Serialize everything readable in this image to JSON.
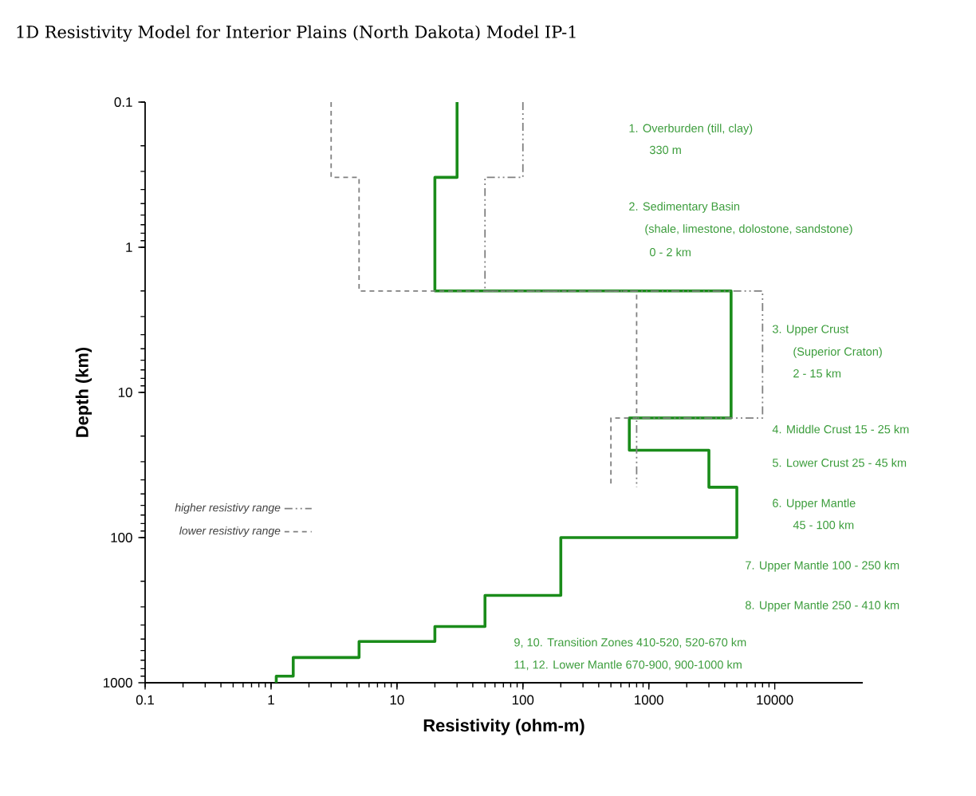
{
  "chart_data": {
    "type": "line",
    "title": "1D Resistivity Model for Interior Plains (North Dakota) Model IP-1",
    "xlabel": "Resistivity (ohm-m)",
    "ylabel": "Depth (km)",
    "log": "xy",
    "xlim": [
      0.1,
      50000
    ],
    "ylim": [
      1000,
      0.1
    ],
    "xticks": [
      0.1,
      1,
      10,
      100,
      1000,
      10000
    ],
    "yticks": [
      0.1,
      1,
      10,
      100,
      1000
    ],
    "grid": false,
    "legend": "left",
    "marker": "none",
    "series": [
      {
        "color": "#1a8c1a",
        "line_style": "solid",
        "x": [
          30,
          30,
          20,
          20,
          4500,
          4500,
          700,
          700,
          3000,
          3000,
          5000,
          5000,
          200,
          200,
          50,
          50,
          20,
          20,
          5,
          5,
          1.5,
          1.5,
          1.1,
          1.1
        ],
        "values": [
          0.1,
          0.33,
          0.33,
          2,
          2,
          15,
          15,
          25,
          25,
          45,
          45,
          100,
          100,
          250,
          250,
          410,
          410,
          520,
          520,
          670,
          670,
          900,
          900,
          1000
        ]
      },
      {
        "name": "higher resistivy range",
        "color": "#808080",
        "line_style": "dashdot",
        "x": [
          100,
          100,
          50,
          50,
          8000,
          8000,
          800,
          800
        ],
        "values": [
          0.1,
          0.33,
          0.33,
          2,
          2,
          15,
          15,
          45
        ]
      },
      {
        "name": "lower resistivy range",
        "color": "#808080",
        "line_style": "dashed",
        "x": [
          3,
          3,
          5,
          5,
          800,
          800,
          500,
          500
        ],
        "values": [
          0.1,
          0.33,
          0.33,
          2,
          2,
          15,
          15,
          45
        ]
      }
    ],
    "annotations": [
      "1. Overburden (till, clay)",
      "330 m",
      "2. Sedimentary Basin",
      "(shale, limestone, dolostone, sandstone)",
      "0 - 2 km",
      "3. Upper Crust",
      "(Superior Craton)",
      "2 - 15 km",
      "4. Middle Crust 15 - 25 km",
      "5. Lower Crust 25 - 45 km",
      "6. Upper Mantle",
      "45 - 100 km",
      "7. Upper Mantle 100 - 250 km",
      "8. Upper Mantle  250 - 410 km",
      "9, 10. Transition Zones 410-520, 520-670 km",
      "11, 12. Lower Mantle 670-900, 900-1000 km"
    ]
  }
}
